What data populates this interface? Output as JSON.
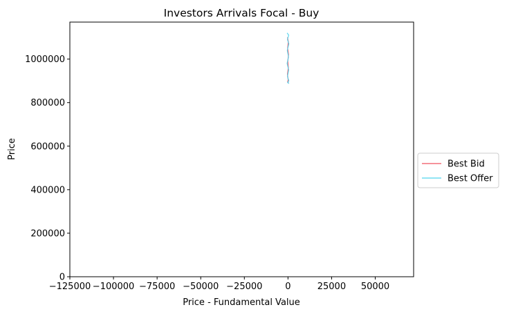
{
  "chart_data": {
    "type": "line",
    "title": "Investors Arrivals Focal - Buy",
    "xlabel": "Price - Fundamental Value",
    "ylabel": "Price",
    "xlim": [
      -125000,
      72000
    ],
    "ylim": [
      0,
      1170000
    ],
    "xticks": [
      -125000,
      -100000,
      -75000,
      -50000,
      -25000,
      0,
      25000,
      50000
    ],
    "xtick_labels": [
      "−125000",
      "−100000",
      "−75000",
      "−50000",
      "−25000",
      "0",
      "25000",
      "50000"
    ],
    "yticks": [
      0,
      200000,
      400000,
      600000,
      800000,
      1000000
    ],
    "ytick_labels": [
      "0",
      "200000",
      "400000",
      "600000",
      "800000",
      "1000000"
    ],
    "grid": false,
    "legend_position": "right, outside plot",
    "series": [
      {
        "name": "Best Bid",
        "color": "#f0505f",
        "points": [
          [
            -300,
            1100000
          ],
          [
            200,
            1080000
          ],
          [
            -200,
            1050000
          ],
          [
            300,
            1020000
          ],
          [
            -100,
            990000
          ],
          [
            200,
            960000
          ],
          [
            -300,
            930000
          ],
          [
            100,
            905000
          ],
          [
            -200,
            895000
          ],
          [
            300,
            890000
          ]
        ]
      },
      {
        "name": "Best Offer",
        "color": "#4dd3ee",
        "points": [
          [
            -500,
            1120000
          ],
          [
            400,
            1110000
          ],
          [
            -300,
            1090000
          ],
          [
            500,
            1070000
          ],
          [
            -400,
            1040000
          ],
          [
            300,
            1010000
          ],
          [
            -500,
            980000
          ],
          [
            400,
            950000
          ],
          [
            -300,
            920000
          ],
          [
            500,
            900000
          ],
          [
            -200,
            892000
          ],
          [
            600,
            888000
          ]
        ]
      }
    ]
  }
}
